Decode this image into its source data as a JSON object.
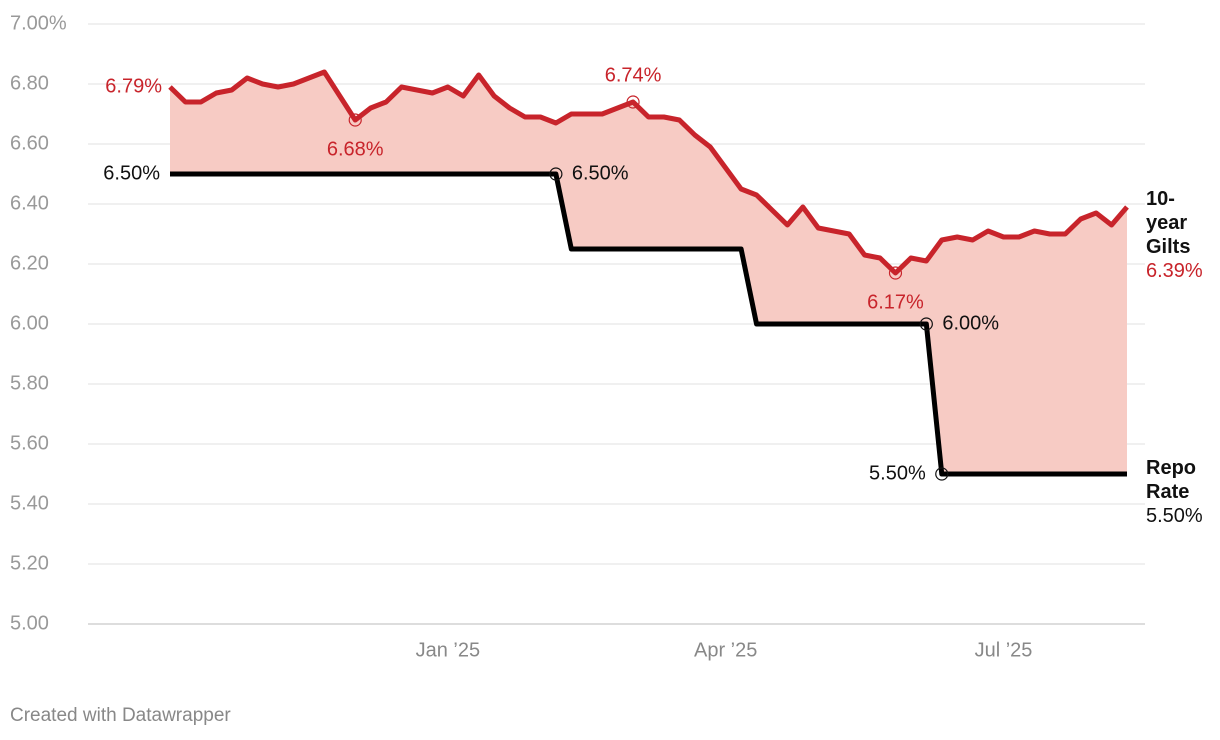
{
  "chart_data": {
    "type": "line",
    "categories": [
      null,
      null,
      null,
      null,
      null,
      null,
      null,
      null,
      null,
      null,
      null,
      null,
      null,
      null,
      null,
      null,
      null,
      null,
      "Jan ’25",
      null,
      null,
      null,
      null,
      null,
      null,
      null,
      null,
      null,
      null,
      null,
      null,
      null,
      null,
      null,
      null,
      null,
      "Apr ’25",
      null,
      null,
      null,
      null,
      null,
      null,
      null,
      null,
      null,
      null,
      null,
      null,
      null,
      null,
      null,
      null,
      null,
      "Jul ’25",
      null,
      null,
      null,
      null,
      null,
      null,
      null,
      null
    ],
    "series": [
      {
        "name": "10-year Gilts",
        "color": "#c8242b",
        "values": [
          6.79,
          6.74,
          6.74,
          6.77,
          6.78,
          6.82,
          6.8,
          6.79,
          6.8,
          6.82,
          6.84,
          6.76,
          6.68,
          6.72,
          6.74,
          6.79,
          6.78,
          6.77,
          6.79,
          6.76,
          6.83,
          6.76,
          6.72,
          6.69,
          6.69,
          6.67,
          6.7,
          6.7,
          6.7,
          6.72,
          6.74,
          6.69,
          6.69,
          6.68,
          6.63,
          6.59,
          6.52,
          6.45,
          6.43,
          6.38,
          6.33,
          6.39,
          6.32,
          6.31,
          6.3,
          6.23,
          6.22,
          6.17,
          6.22,
          6.21,
          6.28,
          6.29,
          6.28,
          6.31,
          6.29,
          6.29,
          6.31,
          6.3,
          6.3,
          6.35,
          6.37,
          6.33,
          6.39
        ],
        "value_labels": [
          "6.79%",
          null,
          null,
          null,
          null,
          null,
          null,
          null,
          null,
          null,
          null,
          null,
          "6.68%",
          null,
          null,
          null,
          null,
          null,
          null,
          null,
          null,
          null,
          null,
          null,
          null,
          null,
          null,
          null,
          null,
          null,
          "6.74%",
          null,
          null,
          null,
          null,
          null,
          null,
          null,
          null,
          null,
          null,
          null,
          null,
          null,
          null,
          null,
          null,
          "6.17%",
          null,
          null,
          null,
          null,
          null,
          null,
          null,
          null,
          null,
          null,
          null,
          null,
          null,
          null,
          "6.39%"
        ]
      },
      {
        "name": "Repo Rate",
        "color": "#000000",
        "values": [
          6.5,
          6.5,
          6.5,
          6.5,
          6.5,
          6.5,
          6.5,
          6.5,
          6.5,
          6.5,
          6.5,
          6.5,
          6.5,
          6.5,
          6.5,
          6.5,
          6.5,
          6.5,
          6.5,
          6.5,
          6.5,
          6.5,
          6.5,
          6.5,
          6.5,
          6.5,
          6.25,
          6.25,
          6.25,
          6.25,
          6.25,
          6.25,
          6.25,
          6.25,
          6.25,
          6.25,
          6.25,
          6.25,
          6.0,
          6.0,
          6.0,
          6.0,
          6.0,
          6.0,
          6.0,
          6.0,
          6.0,
          6.0,
          6.0,
          6.0,
          5.5,
          5.5,
          5.5,
          5.5,
          5.5,
          5.5,
          5.5,
          5.5,
          5.5,
          5.5,
          5.5,
          5.5,
          5.5
        ],
        "value_labels": [
          "6.50%",
          null,
          null,
          null,
          null,
          null,
          null,
          null,
          null,
          null,
          null,
          null,
          null,
          null,
          null,
          null,
          null,
          null,
          null,
          null,
          null,
          null,
          null,
          null,
          null,
          "6.50%",
          null,
          null,
          null,
          null,
          null,
          null,
          null,
          null,
          null,
          null,
          null,
          null,
          null,
          null,
          null,
          null,
          null,
          null,
          null,
          null,
          null,
          null,
          null,
          "6.00%",
          "5.50%",
          null,
          null,
          null,
          null,
          null,
          null,
          null,
          null,
          null,
          null,
          null,
          "5.50%"
        ]
      }
    ],
    "fill_between": "#f7cbc4",
    "ylim": [
      5.0,
      7.0
    ],
    "yticks": [
      {
        "value": 5.0,
        "label": "5.00"
      },
      {
        "value": 5.2,
        "label": "5.20"
      },
      {
        "value": 5.4,
        "label": "5.40"
      },
      {
        "value": 5.6,
        "label": "5.60"
      },
      {
        "value": 5.8,
        "label": "5.80"
      },
      {
        "value": 6.0,
        "label": "6.00"
      },
      {
        "value": 6.2,
        "label": "6.20"
      },
      {
        "value": 6.4,
        "label": "6.40"
      },
      {
        "value": 6.6,
        "label": "6.60"
      },
      {
        "value": 6.8,
        "label": "6.80"
      },
      {
        "value": 7.0,
        "label": "7.00%"
      }
    ],
    "grid": true,
    "source": "Created with Datawrapper"
  }
}
